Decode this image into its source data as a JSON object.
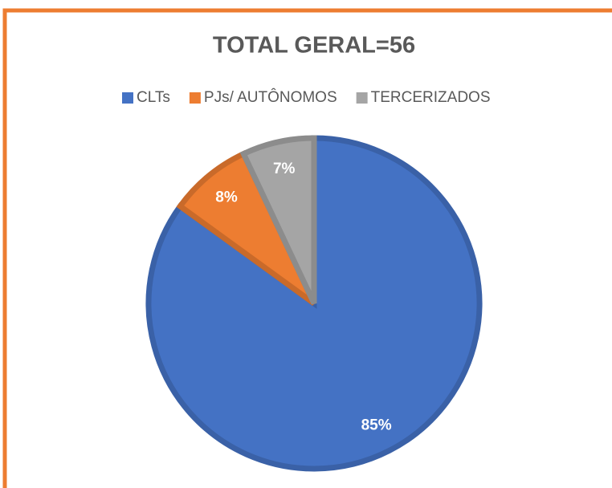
{
  "chart_data": {
    "type": "pie",
    "title": "TOTAL GERAL=56",
    "categories": [
      "CLTs",
      "PJs/ AUTÔNOMOS",
      "TERCERIZADOS"
    ],
    "values": [
      85,
      8,
      7
    ],
    "value_labels": [
      "85%",
      "8%",
      "7%"
    ],
    "colors": [
      "#4472c4",
      "#ed7d31",
      "#a5a5a5"
    ],
    "legend": "top"
  }
}
